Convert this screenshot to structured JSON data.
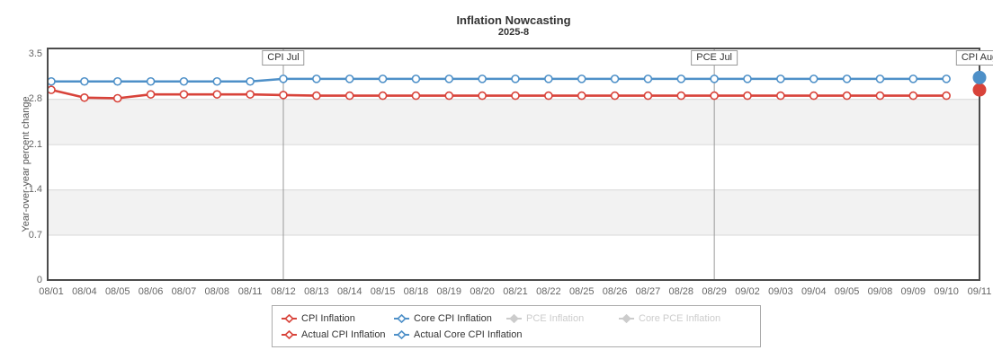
{
  "chart_data": {
    "type": "line",
    "title": "Inflation Nowcasting",
    "subtitle": "2025-8",
    "xlabel": "",
    "ylabel": "Year-over-year percent change",
    "ylim": [
      0,
      3.58
    ],
    "yticks": [
      0,
      0.7,
      1.4,
      2.1,
      2.8,
      3.5
    ],
    "grid": true,
    "legend_position": "bottom",
    "categories": [
      "08/01",
      "08/04",
      "08/05",
      "08/06",
      "08/07",
      "08/08",
      "08/11",
      "08/12",
      "08/13",
      "08/14",
      "08/15",
      "08/18",
      "08/19",
      "08/20",
      "08/21",
      "08/22",
      "08/25",
      "08/26",
      "08/27",
      "08/28",
      "08/29",
      "09/02",
      "09/03",
      "09/04",
      "09/05",
      "09/08",
      "09/09",
      "09/10",
      "09/11"
    ],
    "series": [
      {
        "name": "CPI Inflation",
        "type": "line",
        "color": "#d8433a",
        "disabled": false,
        "values": [
          2.94,
          2.82,
          2.81,
          2.87,
          2.87,
          2.87,
          2.87,
          2.86,
          2.85,
          2.85,
          2.85,
          2.85,
          2.85,
          2.85,
          2.85,
          2.85,
          2.85,
          2.85,
          2.85,
          2.85,
          2.85,
          2.85,
          2.85,
          2.85,
          2.85,
          2.85,
          2.85,
          2.85
        ]
      },
      {
        "name": "Core CPI Inflation",
        "type": "line",
        "color": "#4e90c8",
        "disabled": false,
        "values": [
          3.07,
          3.07,
          3.07,
          3.07,
          3.07,
          3.07,
          3.07,
          3.11,
          3.11,
          3.11,
          3.11,
          3.11,
          3.11,
          3.11,
          3.11,
          3.11,
          3.11,
          3.11,
          3.11,
          3.11,
          3.11,
          3.11,
          3.11,
          3.11,
          3.11,
          3.11,
          3.11,
          3.11
        ]
      },
      {
        "name": "PCE Inflation",
        "type": "line",
        "color": "#cccccc",
        "disabled": true,
        "values": []
      },
      {
        "name": "Core PCE Inflation",
        "type": "line",
        "color": "#cccccc",
        "disabled": true,
        "values": []
      },
      {
        "name": "Actual CPI Inflation",
        "type": "point",
        "color": "#d8433a",
        "disabled": false,
        "point": {
          "category": "09/11",
          "value": 2.94
        }
      },
      {
        "name": "Actual Core CPI Inflation",
        "type": "point",
        "color": "#4e90c8",
        "disabled": false,
        "point": {
          "category": "09/11",
          "value": 3.13
        }
      }
    ],
    "plot_lines": [
      {
        "label": "CPI Jul",
        "category": "08/12"
      },
      {
        "label": "PCE Jul",
        "category": "08/29"
      },
      {
        "label": "CPI Aug",
        "category": "09/11"
      }
    ],
    "colors": {
      "band": "#f2f2f2",
      "gridline": "#d8d8d8",
      "axis_border": "#4c4c4c",
      "plotline": "#999999",
      "tick_text": "#666666",
      "title_text": "#333333",
      "disabled_text": "#cccccc",
      "background": "#ffffff"
    }
  }
}
